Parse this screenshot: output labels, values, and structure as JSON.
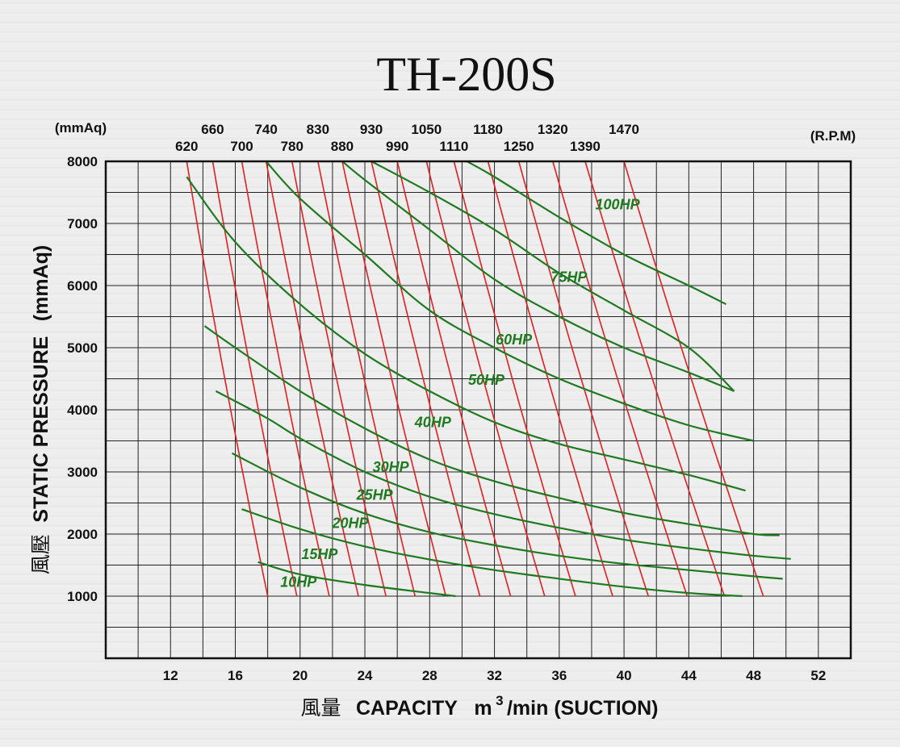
{
  "chart_data": {
    "type": "line",
    "title": "TH-200S",
    "xlabel_cn": "風量",
    "xlabel": "CAPACITY",
    "xunit_base": "m",
    "xunit_sup": "3",
    "xunit_rest": "/min (SUCTION)",
    "ylabel_cn": "風壓",
    "ylabel": "STATIC PRESSURE",
    "yunit": "(mmAq)",
    "y_unit_top": "(mmAq)",
    "rpm_unit": "(R.P.M)",
    "xlim": [
      8,
      54
    ],
    "ylim": [
      0,
      8000
    ],
    "x_ticks": [
      "12",
      "16",
      "20",
      "24",
      "28",
      "32",
      "36",
      "40",
      "44",
      "48",
      "52"
    ],
    "y_ticks": [
      "1000",
      "2000",
      "3000",
      "4000",
      "5000",
      "6000",
      "7000",
      "8000"
    ],
    "grid": true,
    "rpm_curves": [
      {
        "rpm": "620",
        "x_top": 13.0,
        "x_bottom": 18.0
      },
      {
        "rpm": "660",
        "x_top": 14.6,
        "x_bottom": 19.8
      },
      {
        "rpm": "700",
        "x_top": 16.4,
        "x_bottom": 21.8
      },
      {
        "rpm": "740",
        "x_top": 17.9,
        "x_bottom": 23.6
      },
      {
        "rpm": "780",
        "x_top": 19.5,
        "x_bottom": 25.3
      },
      {
        "rpm": "830",
        "x_top": 21.1,
        "x_bottom": 27.1
      },
      {
        "rpm": "880",
        "x_top": 22.6,
        "x_bottom": 29.0
      },
      {
        "rpm": "930",
        "x_top": 24.4,
        "x_bottom": 31.1
      },
      {
        "rpm": "990",
        "x_top": 26.0,
        "x_bottom": 33.0
      },
      {
        "rpm": "1050",
        "x_top": 27.8,
        "x_bottom": 35.1
      },
      {
        "rpm": "1110",
        "x_top": 29.5,
        "x_bottom": 37.0
      },
      {
        "rpm": "1180",
        "x_top": 31.6,
        "x_bottom": 39.3
      },
      {
        "rpm": "1250",
        "x_top": 33.5,
        "x_bottom": 41.5
      },
      {
        "rpm": "1320",
        "x_top": 35.6,
        "x_bottom": 43.9
      },
      {
        "rpm": "1390",
        "x_top": 37.6,
        "x_bottom": 46.2
      },
      {
        "rpm": "1470",
        "x_top": 40.0,
        "x_bottom": 48.6
      }
    ],
    "series": [
      {
        "name": "10HP",
        "x": [
          17.4,
          20.0,
          24.0,
          28.0,
          29.6
        ],
        "y": [
          1550,
          1350,
          1180,
          1050,
          1000
        ]
      },
      {
        "name": "15HP",
        "x": [
          16.4,
          20.0,
          24.0,
          28.0,
          32.0,
          36.0,
          40.0,
          44.0,
          47.3
        ],
        "y": [
          2400,
          2080,
          1800,
          1590,
          1420,
          1280,
          1150,
          1050,
          1000
        ]
      },
      {
        "name": "20HP",
        "x": [
          15.8,
          20.0,
          24.0,
          28.0,
          32.0,
          36.0,
          40.0,
          44.0,
          48.0,
          49.8
        ],
        "y": [
          3300,
          2750,
          2330,
          2030,
          1820,
          1650,
          1520,
          1420,
          1320,
          1280
        ]
      },
      {
        "name": "25HP",
        "x": [
          14.8,
          18.0,
          20.0,
          24.0,
          28.0,
          32.0,
          36.0,
          40.0,
          44.0,
          48.0,
          50.3
        ],
        "y": [
          4300,
          3860,
          3540,
          3000,
          2600,
          2320,
          2100,
          1910,
          1770,
          1650,
          1600
        ]
      },
      {
        "name": "30HP",
        "x": [
          14.1,
          16.0,
          20.0,
          24.0,
          28.0,
          32.0,
          36.0,
          40.0,
          44.0,
          48.0,
          49.6
        ],
        "y": [
          5350,
          5000,
          4300,
          3700,
          3200,
          2850,
          2580,
          2340,
          2160,
          2000,
          1980
        ]
      },
      {
        "name": "40HP",
        "x": [
          13.0,
          16.0,
          20.0,
          24.0,
          28.0,
          32.0,
          36.0,
          40.0,
          44.0,
          47.5
        ],
        "y": [
          7750,
          6700,
          5700,
          4900,
          4300,
          3800,
          3450,
          3200,
          2950,
          2700
        ]
      },
      {
        "name": "50HP",
        "x": [
          17.9,
          20.0,
          24.0,
          28.0,
          32.0,
          36.0,
          40.0,
          44.0,
          48.0
        ],
        "y": [
          8000,
          7400,
          6500,
          5600,
          5000,
          4500,
          4100,
          3750,
          3500
        ]
      },
      {
        "name": "60HP",
        "x": [
          22.6,
          24.0,
          28.0,
          32.0,
          36.0,
          40.0,
          44.0,
          46.8
        ],
        "y": [
          8000,
          7700,
          6900,
          6100,
          5500,
          5000,
          4600,
          4300
        ]
      },
      {
        "name": "75HP",
        "x": [
          24.4,
          28.0,
          32.0,
          36.0,
          40.0,
          44.0,
          46.8
        ],
        "y": [
          8000,
          7500,
          6900,
          6200,
          5600,
          5000,
          4300
        ]
      },
      {
        "name": "100HP",
        "x": [
          30.3,
          32.0,
          36.0,
          40.0,
          44.0,
          46.3
        ],
        "y": [
          8000,
          7750,
          7100,
          6500,
          6000,
          5700
        ]
      }
    ],
    "hp_labels": [
      {
        "text": "10HP",
        "x": 19.9,
        "y": 1150
      },
      {
        "text": "15HP",
        "x": 21.2,
        "y": 1600
      },
      {
        "text": "20HP",
        "x": 23.1,
        "y": 2100
      },
      {
        "text": "25HP",
        "x": 24.6,
        "y": 2550
      },
      {
        "text": "30HP",
        "x": 25.6,
        "y": 3000
      },
      {
        "text": "40HP",
        "x": 28.2,
        "y": 3720
      },
      {
        "text": "50HP",
        "x": 31.5,
        "y": 4400
      },
      {
        "text": "60HP",
        "x": 33.2,
        "y": 5050
      },
      {
        "text": "75HP",
        "x": 36.6,
        "y": 6060
      },
      {
        "text": "100HP",
        "x": 39.6,
        "y": 7230
      }
    ],
    "colors": {
      "rpm_line": "#e02020",
      "hp_line": "#1f7a1f",
      "grid": "#222222"
    }
  }
}
